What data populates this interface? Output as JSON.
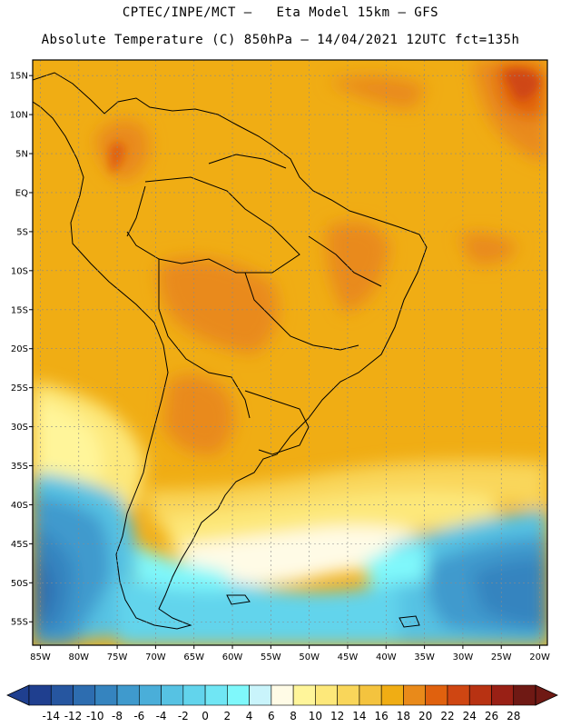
{
  "header": {
    "line1": "CPTEC/INPE/MCT –   Eta Model 15km – GFS",
    "line2": "Absolute Temperature (C) 850hPa – 14/04/2021 12UTC fct=135h"
  },
  "map": {
    "lat_labels": [
      "15N",
      "10N",
      "5N",
      "EQ",
      "5S",
      "10S",
      "15S",
      "20S",
      "25S",
      "30S",
      "35S",
      "40S",
      "45S",
      "50S",
      "55S"
    ],
    "lon_labels": [
      "85W",
      "80W",
      "75W",
      "70W",
      "65W",
      "60W",
      "55W",
      "50W",
      "45W",
      "40W",
      "35W",
      "30W",
      "25W",
      "20W"
    ],
    "lat_range": [
      17,
      -58
    ],
    "lon_range": [
      -86,
      -19
    ]
  },
  "colorbar": {
    "labels": [
      "-14",
      "-12",
      "-10",
      "-8",
      "-6",
      "-4",
      "-2",
      "0",
      "2",
      "4",
      "6",
      "8",
      "10",
      "12",
      "14",
      "16",
      "18",
      "20",
      "22",
      "24",
      "26",
      "28"
    ],
    "colors": [
      "#1f3f8f",
      "#2656a0",
      "#2d6db0",
      "#3584bf",
      "#3f9acd",
      "#4aaed9",
      "#56c2e3",
      "#62d4ec",
      "#70e6f4",
      "#7ff8fb",
      "#c9f4fb",
      "#fffbe6",
      "#fff59a",
      "#fde87a",
      "#f9d65a",
      "#f4c33e",
      "#f0ad14",
      "#e98a1a",
      "#e0610e",
      "#cf4612",
      "#b83212",
      "#992015",
      "#6f1914"
    ]
  }
}
